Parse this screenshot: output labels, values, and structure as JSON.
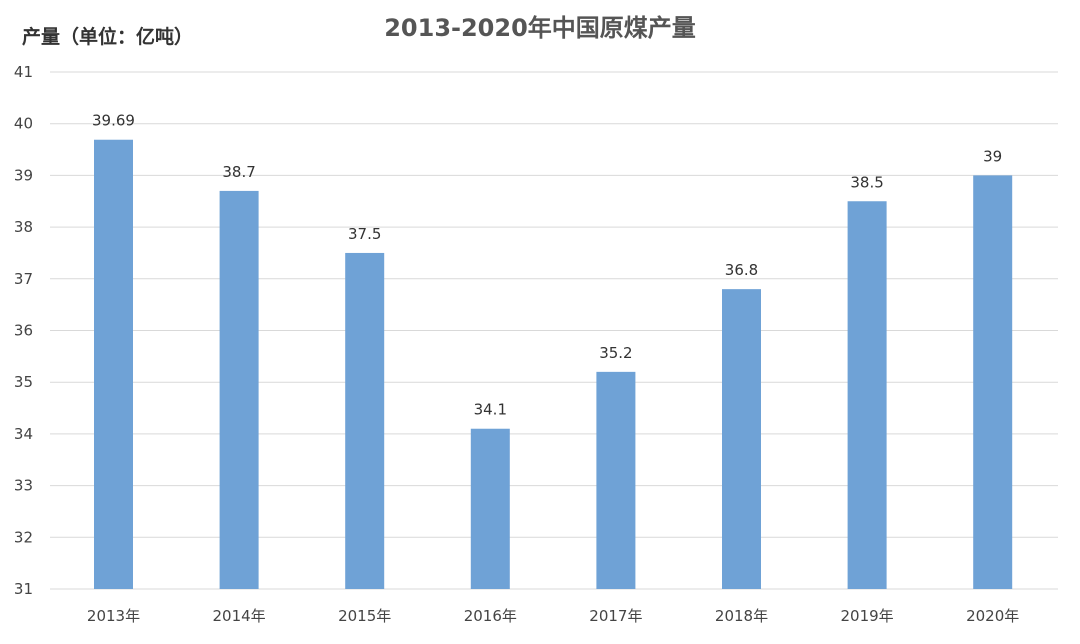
{
  "chart_data": {
    "type": "bar",
    "title": "2013-2020年中国原煤产量",
    "ylabel": "产量（单位：亿吨）",
    "xlabel": "",
    "categories": [
      "2013年",
      "2014年",
      "2015年",
      "2016年",
      "2017年",
      "2018年",
      "2019年",
      "2020年"
    ],
    "values": [
      39.69,
      38.7,
      37.5,
      34.1,
      35.2,
      36.8,
      38.5,
      39
    ],
    "data_labels": [
      "39.69",
      "38.7",
      "37.5",
      "34.1",
      "35.2",
      "36.8",
      "38.5",
      "39"
    ],
    "ylim": [
      31,
      41
    ],
    "yticks": [
      31,
      32,
      33,
      34,
      35,
      36,
      37,
      38,
      39,
      40,
      41
    ],
    "grid": true,
    "bar_color": "#6FA2D6",
    "grid_color": "#D9D9D9"
  }
}
